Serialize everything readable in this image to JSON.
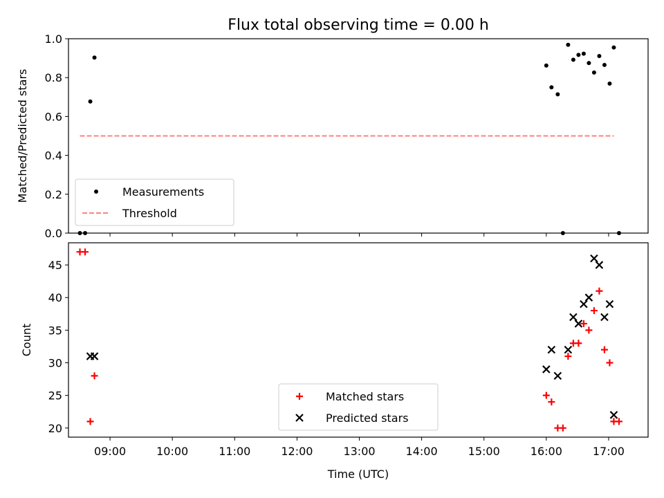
{
  "figure": {
    "title": "Flux total observing time = 0.00 h"
  },
  "chart_data": [
    {
      "type": "scatter",
      "ylabel": "Matched/Predicted stars",
      "ylim": [
        0.0,
        1.0
      ],
      "yticks": [
        "0.0",
        "0.2",
        "0.4",
        "0.6",
        "0.8",
        "1.0"
      ],
      "xlim": [
        "08:20",
        "17:38"
      ],
      "xticks": [
        "09:00",
        "10:00",
        "11:00",
        "12:00",
        "13:00",
        "14:00",
        "15:00",
        "16:00",
        "17:00"
      ],
      "series": [
        {
          "name": "Measurements",
          "marker": "dot",
          "color": "#000000",
          "points": [
            {
              "x": "08:31",
              "y": 0.0
            },
            {
              "x": "08:36",
              "y": 0.0
            },
            {
              "x": "08:41",
              "y": 0.677
            },
            {
              "x": "08:45",
              "y": 0.903
            },
            {
              "x": "16:00",
              "y": 0.862
            },
            {
              "x": "16:05",
              "y": 0.75
            },
            {
              "x": "16:11",
              "y": 0.714
            },
            {
              "x": "16:16",
              "y": 0.0
            },
            {
              "x": "16:21",
              "y": 0.969
            },
            {
              "x": "16:26",
              "y": 0.892
            },
            {
              "x": "16:31",
              "y": 0.917
            },
            {
              "x": "16:36",
              "y": 0.923
            },
            {
              "x": "16:41",
              "y": 0.875
            },
            {
              "x": "16:46",
              "y": 0.826
            },
            {
              "x": "16:51",
              "y": 0.911
            },
            {
              "x": "16:56",
              "y": 0.865
            },
            {
              "x": "17:01",
              "y": 0.769
            },
            {
              "x": "17:05",
              "y": 0.955
            },
            {
              "x": "17:10",
              "y": 0.0
            }
          ]
        },
        {
          "name": "Threshold",
          "style": "dashed",
          "color": "#ff7f7f",
          "points": [
            {
              "x": "08:31",
              "y": 0.5
            },
            {
              "x": "17:05",
              "y": 0.5
            }
          ]
        }
      ],
      "legend": "lower-left"
    },
    {
      "type": "scatter",
      "xlabel": "Time (UTC)",
      "ylabel": "Count",
      "ylim": [
        18.6,
        48.4
      ],
      "yticks": [
        "20",
        "25",
        "30",
        "35",
        "40",
        "45"
      ],
      "xlim": [
        "08:20",
        "17:38"
      ],
      "xticks": [
        "09:00",
        "10:00",
        "11:00",
        "12:00",
        "13:00",
        "14:00",
        "15:00",
        "16:00",
        "17:00"
      ],
      "series": [
        {
          "name": "Matched stars",
          "marker": "plus",
          "color": "#ff0000",
          "points": [
            {
              "x": "08:31",
              "y": 47
            },
            {
              "x": "08:36",
              "y": 47
            },
            {
              "x": "08:41",
              "y": 21
            },
            {
              "x": "08:45",
              "y": 28
            },
            {
              "x": "16:00",
              "y": 25
            },
            {
              "x": "16:05",
              "y": 24
            },
            {
              "x": "16:11",
              "y": 20
            },
            {
              "x": "16:16",
              "y": 20
            },
            {
              "x": "16:21",
              "y": 31
            },
            {
              "x": "16:26",
              "y": 33
            },
            {
              "x": "16:31",
              "y": 33
            },
            {
              "x": "16:36",
              "y": 36
            },
            {
              "x": "16:41",
              "y": 35
            },
            {
              "x": "16:46",
              "y": 38
            },
            {
              "x": "16:51",
              "y": 41
            },
            {
              "x": "16:56",
              "y": 32
            },
            {
              "x": "17:01",
              "y": 30
            },
            {
              "x": "17:05",
              "y": 21
            },
            {
              "x": "17:10",
              "y": 21
            }
          ]
        },
        {
          "name": "Predicted stars",
          "marker": "x",
          "color": "#000000",
          "points": [
            {
              "x": "08:41",
              "y": 31
            },
            {
              "x": "08:45",
              "y": 31
            },
            {
              "x": "16:00",
              "y": 29
            },
            {
              "x": "16:05",
              "y": 32
            },
            {
              "x": "16:11",
              "y": 28
            },
            {
              "x": "16:21",
              "y": 32
            },
            {
              "x": "16:26",
              "y": 37
            },
            {
              "x": "16:31",
              "y": 36
            },
            {
              "x": "16:36",
              "y": 39
            },
            {
              "x": "16:41",
              "y": 40
            },
            {
              "x": "16:46",
              "y": 46
            },
            {
              "x": "16:51",
              "y": 45
            },
            {
              "x": "16:56",
              "y": 37
            },
            {
              "x": "17:01",
              "y": 39
            },
            {
              "x": "17:05",
              "y": 22
            }
          ]
        }
      ],
      "legend": "lower-center"
    }
  ]
}
